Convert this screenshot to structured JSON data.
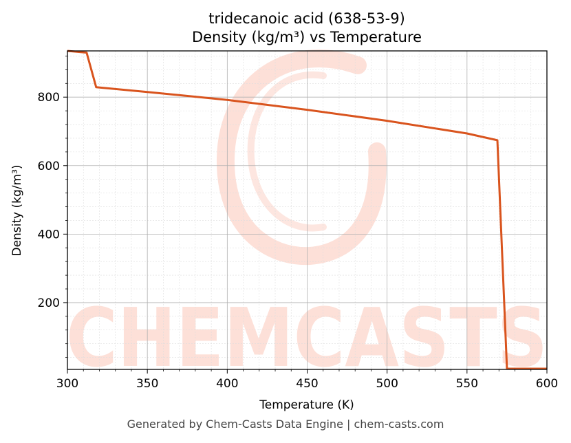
{
  "chart_data": {
    "type": "line",
    "title": "tridecanoic acid (638-53-9)",
    "subtitle": "Density (kg/m³) vs Temperature",
    "xlabel": "Temperature (K)",
    "ylabel": "Density (kg/m³)",
    "xlim": [
      300,
      600
    ],
    "ylim": [
      5,
      935
    ],
    "xticks": [
      300,
      350,
      400,
      450,
      500,
      550,
      600
    ],
    "yticks": [
      200,
      400,
      600,
      800
    ],
    "grid": true,
    "series": [
      {
        "color": "#d9541e",
        "x": [
          300,
          312,
          318,
          350,
          400,
          450,
          500,
          550,
          569,
          575,
          600
        ],
        "y": [
          935,
          930,
          829,
          815,
          792,
          763,
          731,
          694,
          674,
          7,
          7
        ]
      }
    ]
  },
  "watermark": {
    "text": "CHEMCASTS",
    "color": "#fde0d8"
  },
  "footer": "Generated by Chem-Casts Data Engine | chem-casts.com"
}
